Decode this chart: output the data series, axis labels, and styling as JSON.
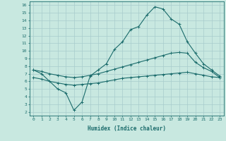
{
  "xlabel": "Humidex (Indice chaleur)",
  "bg_color": "#c8e8e0",
  "line_color": "#1a6b6b",
  "grid_color": "#a8cccc",
  "xlim": [
    -0.5,
    23.5
  ],
  "ylim": [
    1.5,
    16.5
  ],
  "xticks": [
    0,
    1,
    2,
    3,
    4,
    5,
    6,
    7,
    8,
    9,
    10,
    11,
    12,
    13,
    14,
    15,
    16,
    17,
    18,
    19,
    20,
    21,
    22,
    23
  ],
  "yticks": [
    2,
    3,
    4,
    5,
    6,
    7,
    8,
    9,
    10,
    11,
    12,
    13,
    14,
    15,
    16
  ],
  "line1_x": [
    0,
    1,
    3,
    4,
    5,
    6,
    7,
    8,
    9,
    10,
    11,
    12,
    13,
    14,
    15,
    16,
    17,
    18,
    19,
    20,
    21,
    22,
    23
  ],
  "line1_y": [
    7.5,
    7.0,
    5.0,
    4.5,
    2.2,
    3.3,
    6.7,
    7.5,
    8.3,
    10.2,
    11.2,
    12.8,
    13.2,
    14.7,
    15.8,
    15.5,
    14.2,
    13.5,
    11.2,
    9.7,
    8.3,
    7.5,
    6.7
  ],
  "line2_x": [
    0,
    1,
    2,
    3,
    4,
    5,
    6,
    7,
    8,
    9,
    10,
    11,
    12,
    13,
    14,
    15,
    16,
    17,
    18,
    19,
    20,
    21,
    22,
    23
  ],
  "line2_y": [
    7.5,
    7.3,
    7.0,
    6.8,
    6.6,
    6.5,
    6.6,
    6.8,
    7.0,
    7.3,
    7.6,
    7.9,
    8.2,
    8.5,
    8.8,
    9.1,
    9.4,
    9.7,
    9.8,
    9.7,
    8.5,
    7.8,
    7.3,
    6.5
  ],
  "line3_x": [
    0,
    1,
    2,
    3,
    4,
    5,
    6,
    7,
    8,
    9,
    10,
    11,
    12,
    13,
    14,
    15,
    16,
    17,
    18,
    19,
    20,
    21,
    22,
    23
  ],
  "line3_y": [
    6.5,
    6.3,
    6.0,
    5.8,
    5.6,
    5.5,
    5.6,
    5.7,
    5.8,
    6.0,
    6.2,
    6.4,
    6.5,
    6.6,
    6.7,
    6.8,
    6.9,
    7.0,
    7.1,
    7.2,
    7.0,
    6.8,
    6.6,
    6.5
  ]
}
